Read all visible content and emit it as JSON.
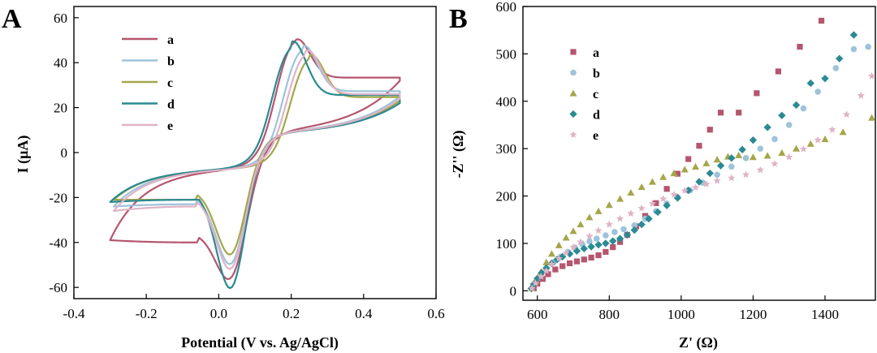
{
  "colors": {
    "a": "#b5566e",
    "b": "#9ec3da",
    "c": "#a5a64a",
    "d": "#2b8a93",
    "e": "#e0b3c6"
  },
  "chart_data": [
    {
      "panel": "A",
      "type": "line",
      "title": "",
      "xlabel": "Potential (V vs. Ag/AgCl)",
      "ylabel": "I (μA)",
      "xlim": [
        -0.4,
        0.6
      ],
      "ylim": [
        -65,
        65
      ],
      "xticks": [
        -0.4,
        -0.2,
        0.0,
        0.2,
        0.4,
        0.6
      ],
      "xtick_labels": [
        "-0.4",
        "-0.2",
        "0.0",
        "0.2",
        "0.4",
        "0.6"
      ],
      "yticks": [
        -60,
        -40,
        -20,
        0,
        20,
        40,
        60
      ],
      "ytick_labels": [
        "-60",
        "-40",
        "-20",
        "0",
        "20",
        "40",
        "60"
      ],
      "legend": "top-left",
      "series": [
        {
          "name": "a",
          "x_start": -0.3,
          "x_end": 0.5,
          "i_start": -39,
          "i_end": 32,
          "anodic_peak": [
            0.21,
            53
          ],
          "cathodic_peak": [
            0.04,
            -56
          ],
          "cathodic_tail": -36,
          "anodic_tail": -9
        },
        {
          "name": "b",
          "x_start": -0.29,
          "x_end": 0.5,
          "i_start": -24,
          "i_end": 25,
          "anodic_peak": [
            0.23,
            49
          ],
          "cathodic_peak": [
            0.04,
            -46
          ],
          "cathodic_tail": -19,
          "anodic_tail": -9
        },
        {
          "name": "c",
          "x_start": -0.29,
          "x_end": 0.5,
          "i_start": -21,
          "i_end": 23,
          "anodic_peak": [
            0.25,
            45
          ],
          "cathodic_peak": [
            0.04,
            -42
          ],
          "cathodic_tail": -17,
          "anodic_tail": -9
        },
        {
          "name": "d",
          "x_start": -0.3,
          "x_end": 0.5,
          "i_start": -22,
          "i_end": 22,
          "anodic_peak": [
            0.2,
            50
          ],
          "cathodic_peak": [
            0.04,
            -54
          ],
          "cathodic_tail": -17,
          "anodic_tail": -9
        },
        {
          "name": "e",
          "x_start": -0.29,
          "x_end": 0.5,
          "i_start": -26,
          "i_end": 24,
          "anodic_peak": [
            0.24,
            47
          ],
          "cathodic_peak": [
            0.04,
            -48
          ],
          "cathodic_tail": -20,
          "anodic_tail": -9
        }
      ]
    },
    {
      "panel": "B",
      "type": "scatter",
      "title": "",
      "xlabel": "Z' (Ω)",
      "ylabel": "-Z'' (Ω)",
      "xlim": [
        560,
        1540
      ],
      "ylim": [
        -20,
        600
      ],
      "xticks": [
        600,
        800,
        1000,
        1200,
        1400
      ],
      "xtick_labels": [
        "600",
        "800",
        "1000",
        "1200",
        "1400"
      ],
      "yticks": [
        0,
        100,
        200,
        300,
        400,
        500,
        600
      ],
      "ytick_labels": [
        "0",
        "100",
        "200",
        "300",
        "400",
        "500",
        "600"
      ],
      "legend": "top-left",
      "series": [
        {
          "name": "a",
          "marker": "square",
          "points": [
            [
              590,
              5
            ],
            [
              600,
              15
            ],
            [
              615,
              25
            ],
            [
              630,
              35
            ],
            [
              650,
              45
            ],
            [
              670,
              52
            ],
            [
              690,
              58
            ],
            [
              710,
              62
            ],
            [
              730,
              66
            ],
            [
              750,
              70
            ],
            [
              770,
              75
            ],
            [
              790,
              82
            ],
            [
              810,
              92
            ],
            [
              830,
              103
            ],
            [
              850,
              118
            ],
            [
              875,
              136
            ],
            [
              900,
              158
            ],
            [
              930,
              185
            ],
            [
              960,
              215
            ],
            [
              990,
              247
            ],
            [
              1020,
              278
            ],
            [
              1050,
              306
            ],
            [
              1080,
              340
            ],
            [
              1110,
              376
            ],
            [
              1160,
              376
            ],
            [
              1210,
              417
            ],
            [
              1270,
              463
            ],
            [
              1330,
              515
            ],
            [
              1390,
              570
            ]
          ]
        },
        {
          "name": "b",
          "marker": "circle",
          "points": [
            [
              585,
              5
            ],
            [
              595,
              18
            ],
            [
              610,
              32
            ],
            [
              625,
              46
            ],
            [
              645,
              60
            ],
            [
              665,
              72
            ],
            [
              685,
              82
            ],
            [
              705,
              91
            ],
            [
              725,
              98
            ],
            [
              745,
              104
            ],
            [
              765,
              110
            ],
            [
              790,
              117
            ],
            [
              815,
              124
            ],
            [
              840,
              130
            ],
            [
              870,
              138
            ],
            [
              900,
              152
            ],
            [
              930,
              168
            ],
            [
              960,
              184
            ],
            [
              990,
              198
            ],
            [
              1025,
              212
            ],
            [
              1060,
              228
            ],
            [
              1100,
              245
            ],
            [
              1140,
              262
            ],
            [
              1180,
              280
            ],
            [
              1220,
              300
            ],
            [
              1260,
              320
            ],
            [
              1300,
              350
            ],
            [
              1340,
              385
            ],
            [
              1380,
              420
            ],
            [
              1430,
              470
            ],
            [
              1480,
              510
            ],
            [
              1520,
              515
            ]
          ]
        },
        {
          "name": "c",
          "marker": "triangle",
          "points": [
            [
              585,
              5
            ],
            [
              595,
              20
            ],
            [
              610,
              40
            ],
            [
              625,
              60
            ],
            [
              640,
              78
            ],
            [
              660,
              96
            ],
            [
              680,
              112
            ],
            [
              700,
              126
            ],
            [
              720,
              140
            ],
            [
              745,
              155
            ],
            [
              770,
              168
            ],
            [
              800,
              181
            ],
            [
              830,
              194
            ],
            [
              860,
              207
            ],
            [
              890,
              219
            ],
            [
              920,
              230
            ],
            [
              950,
              240
            ],
            [
              980,
              248
            ],
            [
              1010,
              256
            ],
            [
              1040,
              262
            ],
            [
              1070,
              269
            ],
            [
              1100,
              277
            ],
            [
              1130,
              283
            ],
            [
              1160,
              286
            ],
            [
              1200,
              282
            ],
            [
              1240,
              285
            ],
            [
              1280,
              291
            ],
            [
              1320,
              300
            ],
            [
              1360,
              310
            ],
            [
              1400,
              320
            ],
            [
              1450,
              335
            ],
            [
              1530,
              365
            ]
          ]
        },
        {
          "name": "d",
          "marker": "diamond",
          "points": [
            [
              583,
              5
            ],
            [
              590,
              14
            ],
            [
              600,
              26
            ],
            [
              612,
              38
            ],
            [
              625,
              48
            ],
            [
              640,
              58
            ],
            [
              655,
              66
            ],
            [
              670,
              72
            ],
            [
              690,
              78
            ],
            [
              710,
              84
            ],
            [
              730,
              89
            ],
            [
              750,
              93
            ],
            [
              770,
              97
            ],
            [
              790,
              100
            ],
            [
              810,
              105
            ],
            [
              830,
              110
            ],
            [
              850,
              118
            ],
            [
              870,
              128
            ],
            [
              890,
              140
            ],
            [
              910,
              152
            ],
            [
              935,
              166
            ],
            [
              960,
              180
            ],
            [
              990,
              196
            ],
            [
              1020,
              212
            ],
            [
              1050,
              230
            ],
            [
              1080,
              248
            ],
            [
              1110,
              264
            ],
            [
              1140,
              280
            ],
            [
              1170,
              298
            ],
            [
              1200,
              318
            ],
            [
              1240,
              345
            ],
            [
              1280,
              370
            ],
            [
              1320,
              392
            ],
            [
              1360,
              438
            ],
            [
              1400,
              448
            ],
            [
              1440,
              490
            ],
            [
              1480,
              540
            ]
          ]
        },
        {
          "name": "e",
          "marker": "star",
          "points": [
            [
              585,
              5
            ],
            [
              595,
              16
            ],
            [
              610,
              30
            ],
            [
              625,
              42
            ],
            [
              640,
              56
            ],
            [
              660,
              68
            ],
            [
              680,
              80
            ],
            [
              700,
              92
            ],
            [
              720,
              103
            ],
            [
              745,
              115
            ],
            [
              770,
              127
            ],
            [
              800,
              140
            ],
            [
              830,
              152
            ],
            [
              860,
              163
            ],
            [
              890,
              174
            ],
            [
              920,
              184
            ],
            [
              950,
              194
            ],
            [
              980,
              203
            ],
            [
              1010,
              211
            ],
            [
              1040,
              218
            ],
            [
              1070,
              225
            ],
            [
              1100,
              232
            ],
            [
              1140,
              238
            ],
            [
              1180,
              245
            ],
            [
              1220,
              255
            ],
            [
              1260,
              268
            ],
            [
              1300,
              282
            ],
            [
              1340,
              299
            ],
            [
              1380,
              318
            ],
            [
              1420,
              340
            ],
            [
              1460,
              372
            ],
            [
              1500,
              412
            ],
            [
              1530,
              453
            ]
          ]
        }
      ]
    }
  ]
}
